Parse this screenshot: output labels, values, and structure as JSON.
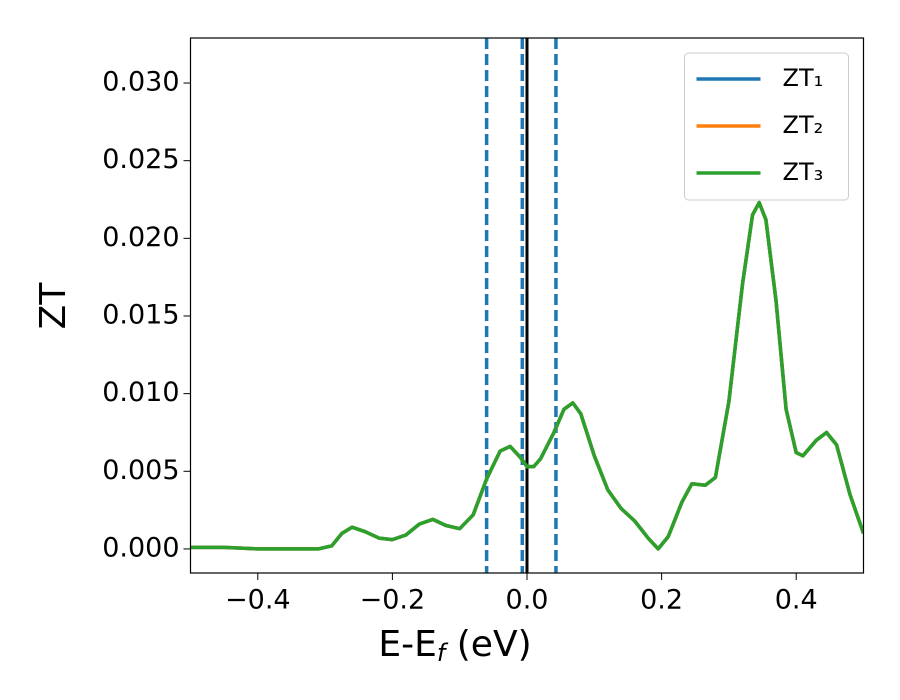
{
  "chart_data": {
    "type": "line",
    "xlabel": [
      "E-E",
      "f",
      " (eV)"
    ],
    "ylabel": "ZT",
    "x": [
      -0.5,
      -0.45,
      -0.4,
      -0.35,
      -0.31,
      -0.29,
      -0.275,
      -0.26,
      -0.24,
      -0.22,
      -0.2,
      -0.18,
      -0.16,
      -0.14,
      -0.12,
      -0.1,
      -0.08,
      -0.06,
      -0.04,
      -0.025,
      -0.01,
      0.0,
      0.01,
      0.02,
      0.04,
      0.055,
      0.068,
      0.08,
      0.1,
      0.12,
      0.14,
      0.16,
      0.18,
      0.195,
      0.21,
      0.23,
      0.245,
      0.265,
      0.28,
      0.3,
      0.32,
      0.335,
      0.345,
      0.355,
      0.37,
      0.385,
      0.4,
      0.41,
      0.43,
      0.445,
      0.46,
      0.48,
      0.5
    ],
    "series": [
      {
        "name": "ZT₁",
        "color": "#1f77b4",
        "values": [
          0.0001,
          0.0001,
          0.0,
          0.0,
          0.0,
          0.0002,
          0.001,
          0.0014,
          0.0011,
          0.0007,
          0.0006,
          0.0009,
          0.0016,
          0.0019,
          0.0015,
          0.0013,
          0.0022,
          0.0045,
          0.0063,
          0.0066,
          0.0059,
          0.0053,
          0.0053,
          0.0058,
          0.0075,
          0.009,
          0.0094,
          0.0087,
          0.006,
          0.0038,
          0.0026,
          0.0018,
          0.0007,
          0.0,
          0.0008,
          0.003,
          0.0042,
          0.0041,
          0.0046,
          0.0095,
          0.017,
          0.0215,
          0.0223,
          0.0212,
          0.016,
          0.009,
          0.0062,
          0.006,
          0.007,
          0.0075,
          0.0067,
          0.0035,
          0.001
        ]
      },
      {
        "name": "ZT₂",
        "color": "#ff7f0e",
        "values": [
          0.0001,
          0.0001,
          0.0,
          0.0,
          0.0,
          0.0002,
          0.001,
          0.0014,
          0.0011,
          0.0007,
          0.0006,
          0.0009,
          0.0016,
          0.0019,
          0.0015,
          0.0013,
          0.0022,
          0.0045,
          0.0063,
          0.0066,
          0.0059,
          0.0053,
          0.0053,
          0.0058,
          0.0075,
          0.009,
          0.0094,
          0.0087,
          0.006,
          0.0038,
          0.0026,
          0.0018,
          0.0007,
          0.0,
          0.0008,
          0.003,
          0.0042,
          0.0041,
          0.0046,
          0.0095,
          0.017,
          0.0215,
          0.0223,
          0.0212,
          0.016,
          0.009,
          0.0062,
          0.006,
          0.007,
          0.0075,
          0.0067,
          0.0035,
          0.001
        ]
      },
      {
        "name": "ZT₃",
        "color": "#2ca02c",
        "values": [
          0.0001,
          0.0001,
          0.0,
          0.0,
          0.0,
          0.0002,
          0.001,
          0.0014,
          0.0011,
          0.0007,
          0.0006,
          0.0009,
          0.0016,
          0.0019,
          0.0015,
          0.0013,
          0.0022,
          0.0045,
          0.0063,
          0.0066,
          0.0059,
          0.0053,
          0.0053,
          0.0058,
          0.0075,
          0.009,
          0.0094,
          0.0087,
          0.006,
          0.0038,
          0.0026,
          0.0018,
          0.0007,
          0.0,
          0.0008,
          0.003,
          0.0042,
          0.0041,
          0.0046,
          0.0095,
          0.017,
          0.0215,
          0.0223,
          0.0212,
          0.016,
          0.009,
          0.0062,
          0.006,
          0.007,
          0.0075,
          0.0067,
          0.0035,
          0.001
        ]
      }
    ],
    "vlines": [
      {
        "x": -0.06,
        "color": "#1f77b4",
        "style": "dashed"
      },
      {
        "x": -0.007,
        "color": "#1f77b4",
        "style": "dashed"
      },
      {
        "x": 0.043,
        "color": "#1f77b4",
        "style": "dashed"
      },
      {
        "x": 0.0,
        "color": "#000000",
        "style": "solid"
      }
    ],
    "xlim": [
      -0.5,
      0.5
    ],
    "ylim": [
      -0.00155,
      0.0329
    ],
    "xticks": [
      {
        "value": -0.4,
        "label": "−0.4"
      },
      {
        "value": -0.2,
        "label": "−0.2"
      },
      {
        "value": 0.0,
        "label": "0.0"
      },
      {
        "value": 0.2,
        "label": "0.2"
      },
      {
        "value": 0.4,
        "label": "0.4"
      }
    ],
    "yticks": [
      {
        "value": 0.0,
        "label": "0.000"
      },
      {
        "value": 0.005,
        "label": "0.005"
      },
      {
        "value": 0.01,
        "label": "0.010"
      },
      {
        "value": 0.015,
        "label": "0.015"
      },
      {
        "value": 0.02,
        "label": "0.020"
      },
      {
        "value": 0.025,
        "label": "0.025"
      },
      {
        "value": 0.03,
        "label": "0.030"
      }
    ],
    "legend": "upper right",
    "grid": false
  }
}
